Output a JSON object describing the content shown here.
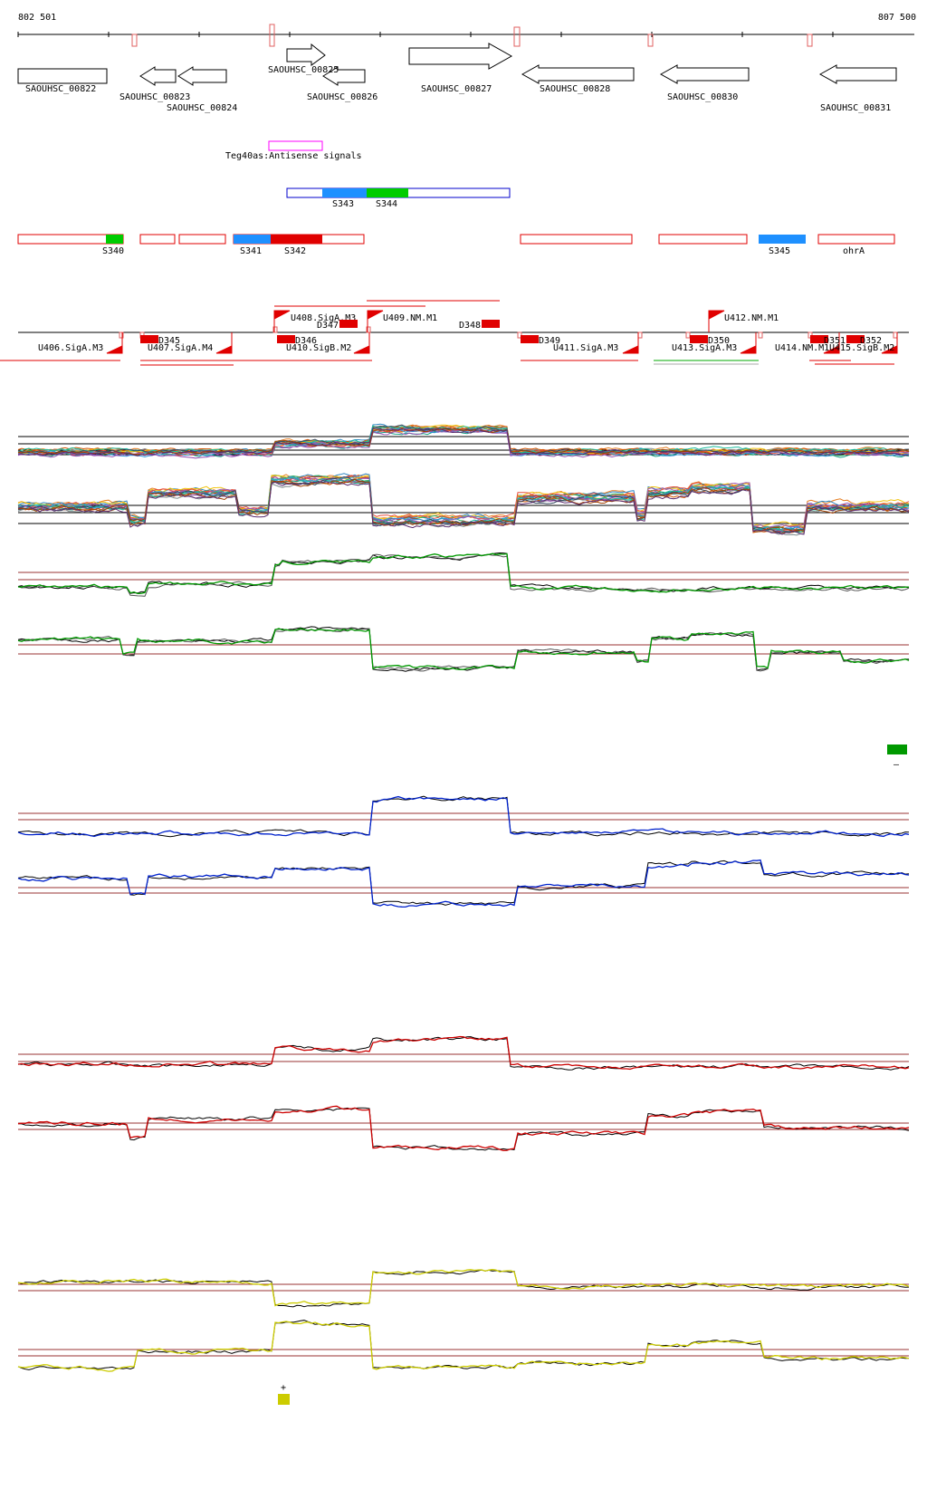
{
  "coords": {
    "start": "802 501",
    "end": "807 500"
  },
  "genes": [
    {
      "label": "SAOUHSC_00822",
      "dir": "right"
    },
    {
      "label": "SAOUHSC_00823",
      "dir": "left"
    },
    {
      "label": "SAOUHSC_00824",
      "dir": "left"
    },
    {
      "label": "SAOUHSC_00825",
      "dir": "right"
    },
    {
      "label": "SAOUHSC_00826",
      "dir": "left"
    },
    {
      "label": "SAOUHSC_00827",
      "dir": "right"
    },
    {
      "label": "SAOUHSC_00828",
      "dir": "left"
    },
    {
      "label": "SAOUHSC_00830",
      "dir": "left"
    },
    {
      "label": "SAOUHSC_00831",
      "dir": "left"
    }
  ],
  "antisense": {
    "label": "Teg40as:Antisense signals"
  },
  "upper_segments": [
    {
      "label": "S343"
    },
    {
      "label": "S344"
    }
  ],
  "segments": [
    {
      "label": "S340"
    },
    {
      "label": "S341"
    },
    {
      "label": "S342"
    },
    {
      "label": "S345"
    },
    {
      "label": "ohrA"
    }
  ],
  "promoters_top": [
    {
      "label": "U408.SigA.M3"
    },
    {
      "label": "U409.NM.M1"
    },
    {
      "label": "U412.NM.M1"
    }
  ],
  "promoters_bottom": [
    {
      "label": "U406.SigA.M3"
    },
    {
      "label": "U407.SigA.M4"
    },
    {
      "label": "U410.SigB.M2"
    },
    {
      "label": "U411.SigA.M3"
    },
    {
      "label": "U413.SigA.M3"
    },
    {
      "label": "U414.NM.M1"
    },
    {
      "label": "U415.SigB.M2"
    }
  ],
  "d_features": [
    {
      "label": "D345"
    },
    {
      "label": "D346"
    },
    {
      "label": "D347"
    },
    {
      "label": "D348"
    },
    {
      "label": "D349"
    },
    {
      "label": "D350"
    },
    {
      "label": "D351"
    },
    {
      "label": "D352"
    }
  ],
  "colors": {
    "gene": "#000000",
    "segment": "#e00000",
    "blue_seg": "#1e90ff",
    "green_seg": "#00cc00",
    "antisense": "#ff00ff",
    "expression_green": "#009900",
    "expression_blue": "#0022cc",
    "expression_red": "#cc0000",
    "expression_yellow": "#cccc00",
    "threshold": "#993333"
  },
  "legend": {
    "minus": "–",
    "plus": "+"
  }
}
